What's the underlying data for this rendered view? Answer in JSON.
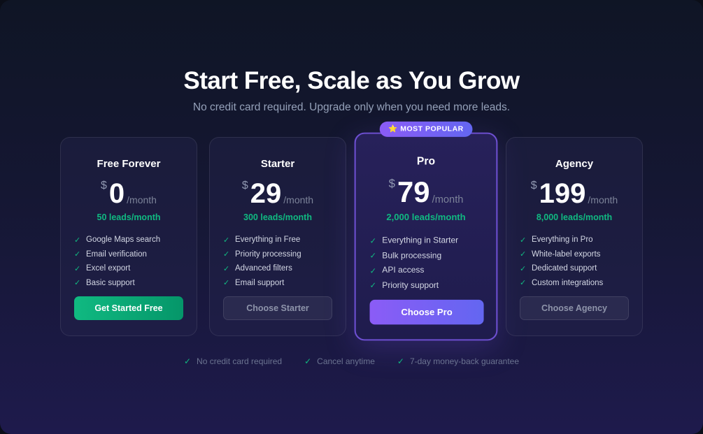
{
  "header": {
    "title": "Start Free, Scale as You Grow",
    "subtitle": "No credit card required. Upgrade only when you need more leads."
  },
  "plans": [
    {
      "name": "Free Forever",
      "currency": "$",
      "price": "0",
      "period": "/month",
      "leads": "50 leads/month",
      "features": [
        "Google Maps search",
        "Email verification",
        "Excel export",
        "Basic support"
      ],
      "cta": "Get Started Free"
    },
    {
      "name": "Starter",
      "currency": "$",
      "price": "29",
      "period": "/month",
      "leads": "300 leads/month",
      "features": [
        "Everything in Free",
        "Priority processing",
        "Advanced filters",
        "Email support"
      ],
      "cta": "Choose Starter"
    },
    {
      "name": "Pro",
      "badge": "MOST POPULAR",
      "badge_icon": "⭐",
      "currency": "$",
      "price": "79",
      "period": "/month",
      "leads": "2,000 leads/month",
      "features": [
        "Everything in Starter",
        "Bulk processing",
        "API access",
        "Priority support"
      ],
      "cta": "Choose Pro"
    },
    {
      "name": "Agency",
      "currency": "$",
      "price": "199",
      "period": "/month",
      "leads": "8,000 leads/month",
      "features": [
        "Everything in Pro",
        "White-label exports",
        "Dedicated support",
        "Custom integrations"
      ],
      "cta": "Choose Agency"
    }
  ],
  "check": "✓",
  "footer": [
    "No credit card required",
    "Cancel anytime",
    "7-day money-back guarantee"
  ],
  "colors": {
    "accent_green": "#10b981",
    "accent_purple": "#8b5cf6"
  }
}
